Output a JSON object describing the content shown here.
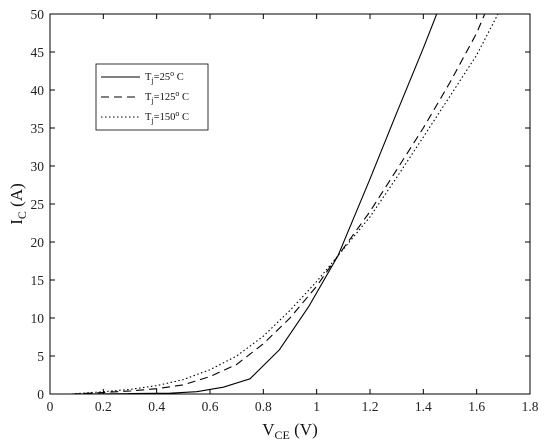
{
  "chart_data": {
    "type": "line",
    "xlabel": {
      "main": "V",
      "sub": "CE",
      "unit": " (V)"
    },
    "ylabel": {
      "main": "I",
      "sub": "C",
      "unit": " (A)"
    },
    "xlim": [
      0,
      1.8
    ],
    "ylim": [
      0,
      50
    ],
    "xticks": [
      0,
      0.2,
      0.4,
      0.6,
      0.8,
      1,
      1.2,
      1.4,
      1.6,
      1.8
    ],
    "xtick_labels": [
      "0",
      "0.2",
      "0.4",
      "0.6",
      "0.8",
      "1",
      "1.2",
      "1.4",
      "1.6",
      "1.8"
    ],
    "yticks": [
      0,
      5,
      10,
      15,
      20,
      25,
      30,
      35,
      40,
      45,
      50
    ],
    "ytick_labels": [
      "0",
      "5",
      "10",
      "15",
      "20",
      "25",
      "30",
      "35",
      "40",
      "45",
      "50"
    ],
    "grid": false,
    "legend_position": "top-left",
    "series": [
      {
        "name": "T_j=25° C",
        "label": {
          "main": "T",
          "sub": "j",
          "rest": "=25",
          "sup": "o",
          "end": " C"
        },
        "style": "solid",
        "x": [
          0.08,
          0.3,
          0.45,
          0.55,
          0.65,
          0.75,
          0.86,
          0.97,
          1.08,
          1.2,
          1.3,
          1.4,
          1.45
        ],
        "y": [
          0,
          0.05,
          0.1,
          0.3,
          0.9,
          2.0,
          5.8,
          11.5,
          18.2,
          28.3,
          37.0,
          45.5,
          50.0
        ]
      },
      {
        "name": "T_j=125° C",
        "label": {
          "main": "T",
          "sub": "j",
          "rest": "=125",
          "sup": "o",
          "end": " C"
        },
        "style": "dashed",
        "x": [
          0.08,
          0.2,
          0.3,
          0.4,
          0.5,
          0.6,
          0.7,
          0.8,
          0.9,
          1.0,
          1.08,
          1.2,
          1.3,
          1.4,
          1.5,
          1.6,
          1.63
        ],
        "y": [
          0,
          0.2,
          0.4,
          0.7,
          1.2,
          2.3,
          3.9,
          6.6,
          10.0,
          14.2,
          18.2,
          24.0,
          29.5,
          35.0,
          41.0,
          47.5,
          50.0
        ]
      },
      {
        "name": "T_j=150° C",
        "label": {
          "main": "T",
          "sub": "j",
          "rest": "=150",
          "sup": "o",
          "end": " C"
        },
        "style": "dotted",
        "x": [
          0.08,
          0.2,
          0.3,
          0.4,
          0.5,
          0.6,
          0.7,
          0.8,
          0.9,
          1.0,
          1.08,
          1.2,
          1.3,
          1.4,
          1.5,
          1.6,
          1.68
        ],
        "y": [
          0,
          0.3,
          0.6,
          1.1,
          1.9,
          3.2,
          5.0,
          7.6,
          11.0,
          14.8,
          18.2,
          23.3,
          28.5,
          33.8,
          39.2,
          44.6,
          50.0
        ]
      }
    ]
  }
}
